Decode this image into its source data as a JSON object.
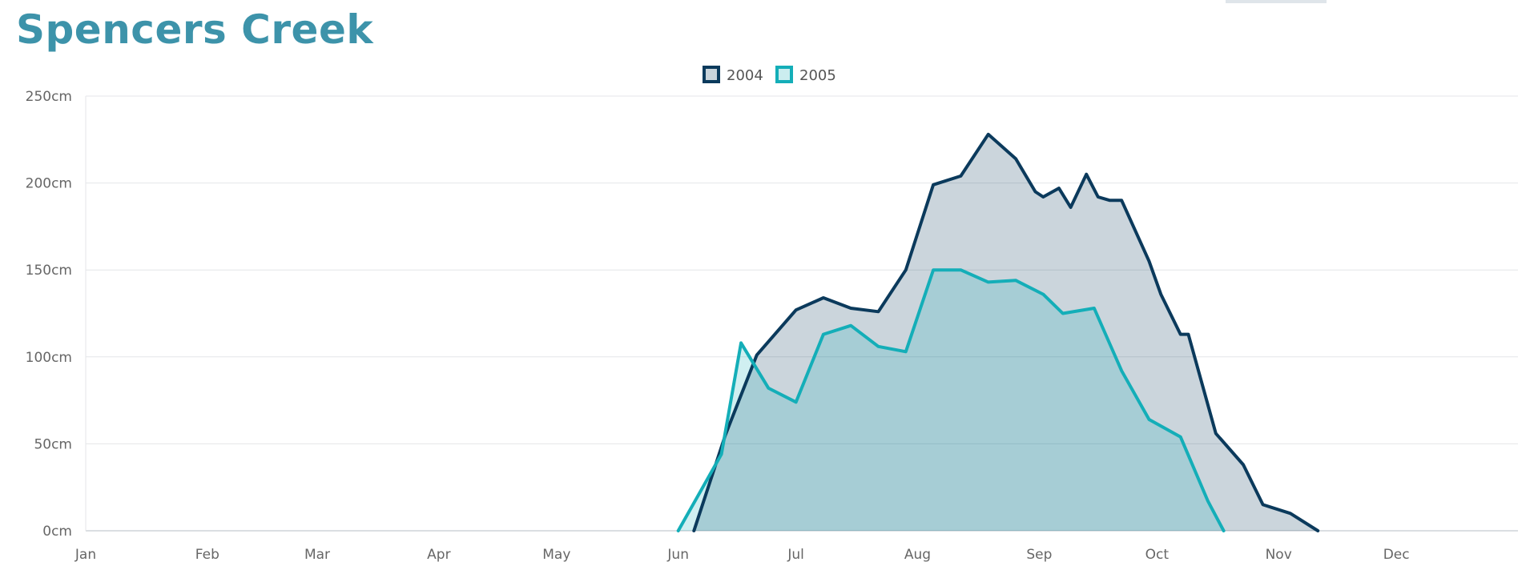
{
  "page": {
    "title": "Spencers Creek"
  },
  "colors": {
    "title": "#3d93aa",
    "grid": "#e4e6e8",
    "axis": "#cfd4d8",
    "tab": "#dfe5ea"
  },
  "chart_data": {
    "type": "area",
    "title": "Spencers Creek",
    "xlabel": "",
    "ylabel": "",
    "x_unit": "day of year",
    "xlim": [
      1,
      366
    ],
    "ylim": [
      0,
      250
    ],
    "y_ticks": [
      0,
      50,
      100,
      150,
      200,
      250
    ],
    "y_tick_labels": [
      "0cm",
      "50cm",
      "100cm",
      "150cm",
      "200cm",
      "250cm"
    ],
    "x_tick_labels": [
      "Jan",
      "Feb",
      "Mar",
      "Apr",
      "May",
      "Jun",
      "Jul",
      "Aug",
      "Sep",
      "Oct",
      "Nov",
      "Dec"
    ],
    "x_tick_days": [
      1,
      32,
      60,
      91,
      121,
      152,
      182,
      213,
      244,
      274,
      305,
      335
    ],
    "grid": true,
    "legend_position": "top-center",
    "series": [
      {
        "name": "2004",
        "line_color": "#0b3a5c",
        "fill_color": "#0b3a5c",
        "fill_opacity": 0.21,
        "points": [
          [
            156,
            0
          ],
          [
            164,
            55
          ],
          [
            172,
            101
          ],
          [
            182,
            127
          ],
          [
            189,
            134
          ],
          [
            196,
            128
          ],
          [
            203,
            126
          ],
          [
            210,
            150
          ],
          [
            217,
            199
          ],
          [
            224,
            204
          ],
          [
            231,
            228
          ],
          [
            238,
            214
          ],
          [
            243,
            195
          ],
          [
            245,
            192
          ],
          [
            249,
            197
          ],
          [
            252,
            186
          ],
          [
            256,
            205
          ],
          [
            259,
            192
          ],
          [
            262,
            190
          ],
          [
            265,
            190
          ],
          [
            272,
            155
          ],
          [
            275,
            136
          ],
          [
            280,
            113
          ],
          [
            282,
            113
          ],
          [
            289,
            56
          ],
          [
            296,
            38
          ],
          [
            301,
            15
          ],
          [
            308,
            10
          ],
          [
            315,
            0
          ]
        ]
      },
      {
        "name": "2005",
        "line_color": "#14aeb8",
        "fill_color": "#14aeb8",
        "fill_opacity": 0.2,
        "points": [
          [
            152,
            0
          ],
          [
            163,
            44
          ],
          [
            168,
            108
          ],
          [
            175,
            82
          ],
          [
            182,
            74
          ],
          [
            189,
            113
          ],
          [
            196,
            118
          ],
          [
            203,
            106
          ],
          [
            210,
            103
          ],
          [
            217,
            150
          ],
          [
            224,
            150
          ],
          [
            231,
            143
          ],
          [
            238,
            144
          ],
          [
            245,
            136
          ],
          [
            250,
            125
          ],
          [
            258,
            128
          ],
          [
            265,
            92
          ],
          [
            272,
            64
          ],
          [
            280,
            54
          ],
          [
            287,
            17
          ],
          [
            291,
            0
          ]
        ]
      }
    ]
  }
}
